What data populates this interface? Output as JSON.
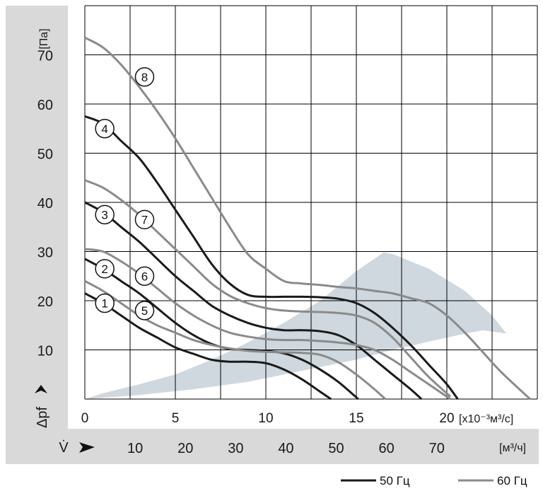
{
  "chart_data": {
    "type": "line",
    "xlabel": "",
    "x_unit": "[x10⁻³м³/с]",
    "ylabel": "Δpf",
    "y_unit": "[Па]",
    "xlim": [
      0,
      25
    ],
    "ylim": [
      0,
      80
    ],
    "x_ticks": [
      "0",
      "5",
      "10",
      "15",
      "20"
    ],
    "y_ticks": [
      "10",
      "20",
      "30",
      "40",
      "50",
      "60",
      "70"
    ],
    "secondary_axis": {
      "symbol": "V̇",
      "unit": "[м³/ч]",
      "ticks": [
        "10",
        "20",
        "30",
        "40",
        "50",
        "60",
        "70"
      ]
    },
    "legend": [
      {
        "name": "50 Гц",
        "color": "#1a1a1a"
      },
      {
        "name": "60 Гц",
        "color": "#8a8a8a"
      }
    ],
    "colors": {
      "hz50": "#1a1a1a",
      "hz60": "#8a8a8a",
      "region": "#cfd8de",
      "grid": "#000000",
      "band": "#d9d9d9"
    },
    "series": [
      {
        "name": "1",
        "freq": "50 Гц",
        "x": [
          0,
          1,
          2,
          3,
          4,
          5,
          6,
          7,
          8,
          9,
          10,
          11,
          12,
          13,
          13.6
        ],
        "y": [
          21.5,
          19.5,
          17,
          14.5,
          12.5,
          10.5,
          9.2,
          8,
          7.6,
          7.6,
          7.3,
          6,
          4,
          1.5,
          0
        ]
      },
      {
        "name": "2",
        "freq": "50 Гц",
        "x": [
          0,
          1,
          2,
          3,
          4,
          5,
          6,
          7,
          8,
          9,
          10,
          11,
          12,
          13,
          14,
          15.1
        ],
        "y": [
          28.5,
          26.5,
          24,
          21.5,
          18.5,
          15.5,
          13,
          11.2,
          10.2,
          10,
          9.8,
          9.3,
          8,
          6,
          3.5,
          0
        ]
      },
      {
        "name": "3",
        "freq": "50 Гц",
        "x": [
          0,
          1,
          2,
          3,
          4,
          5,
          6,
          7,
          8,
          9,
          10,
          11,
          12,
          13,
          14,
          15,
          16,
          17,
          18,
          18.6
        ],
        "y": [
          40,
          38,
          35,
          32,
          28.5,
          25,
          22,
          19,
          17,
          15.5,
          14.5,
          14,
          14,
          13.8,
          13,
          11,
          8,
          5,
          2,
          0
        ]
      },
      {
        "name": "4",
        "freq": "50 Гц",
        "x": [
          0,
          1,
          2,
          3,
          4,
          5,
          6,
          7,
          8,
          9,
          10,
          11,
          12,
          13,
          14,
          15,
          16,
          17,
          18,
          19,
          20,
          20.6
        ],
        "y": [
          57.5,
          56,
          52.5,
          49,
          44,
          38.5,
          33,
          27.5,
          23.5,
          21.2,
          20.8,
          20.8,
          20.8,
          20.7,
          20.4,
          19.5,
          17.5,
          14.5,
          11,
          7,
          3,
          0
        ]
      },
      {
        "name": "5",
        "freq": "60 Гц",
        "x": [
          0,
          1,
          2,
          3,
          4,
          5,
          6,
          7,
          8,
          9,
          10,
          11,
          12,
          13,
          14,
          15,
          16,
          16.6
        ],
        "y": [
          24,
          22,
          19.5,
          17,
          15,
          13.5,
          12,
          11,
          10.3,
          9.8,
          9.6,
          9.5,
          9.4,
          9,
          7.5,
          5,
          2,
          0
        ]
      },
      {
        "name": "6",
        "freq": "60 Гц",
        "x": [
          0,
          1,
          2,
          3,
          4,
          5,
          6,
          7,
          8,
          9,
          10,
          11,
          12,
          13,
          14,
          15,
          16,
          17,
          18,
          19,
          20.2
        ],
        "y": [
          30.5,
          30,
          28,
          25.5,
          22.5,
          19.5,
          17,
          15,
          13.5,
          12.7,
          12.2,
          12,
          12,
          11.8,
          11.5,
          11,
          10,
          8,
          5.5,
          3,
          0
        ]
      },
      {
        "name": "7",
        "freq": "60 Гц",
        "x": [
          0,
          1,
          2,
          3,
          4,
          5,
          6,
          7,
          8,
          9,
          10,
          11,
          12,
          13,
          14,
          15,
          16,
          17,
          18,
          19,
          20.2
        ],
        "y": [
          44.5,
          43,
          40.5,
          37.5,
          34,
          30.5,
          27,
          23.5,
          21,
          19.5,
          18.5,
          18,
          17.8,
          17.7,
          17.5,
          17,
          15.5,
          12.5,
          8.5,
          4.5,
          0.5
        ]
      },
      {
        "name": "8",
        "freq": "60 Гц",
        "x": [
          0,
          1,
          2,
          3,
          4,
          5,
          6,
          7,
          8,
          9,
          10,
          11,
          12,
          13,
          14,
          15,
          16,
          17,
          18,
          19,
          20,
          21,
          22,
          23,
          24.6
        ],
        "y": [
          73.5,
          71.5,
          68,
          63.5,
          58.5,
          53,
          47,
          41,
          35,
          29.5,
          26.5,
          24,
          23.5,
          23.2,
          22.8,
          22.5,
          22,
          21.5,
          20.5,
          19.5,
          17,
          13.5,
          9.5,
          5.5,
          0
        ]
      }
    ],
    "labels": [
      {
        "text": "1",
        "x": 1.1,
        "y": 19.5
      },
      {
        "text": "2",
        "x": 1.1,
        "y": 26.5
      },
      {
        "text": "3",
        "x": 1.1,
        "y": 37.5
      },
      {
        "text": "4",
        "x": 1.1,
        "y": 55.0
      },
      {
        "text": "5",
        "x": 3.3,
        "y": 18.0
      },
      {
        "text": "6",
        "x": 3.3,
        "y": 25.0
      },
      {
        "text": "7",
        "x": 3.3,
        "y": 36.5
      },
      {
        "text": "8",
        "x": 3.3,
        "y": 65.5
      }
    ],
    "region": {
      "x": [
        0,
        3,
        6,
        9,
        11,
        13,
        15,
        16,
        17,
        18,
        19,
        20,
        21,
        22,
        23.3,
        22.5,
        21,
        19,
        17,
        16.5,
        15,
        13,
        11,
        9,
        7,
        5,
        3,
        1,
        0
      ],
      "y": [
        0,
        0.8,
        2,
        3.5,
        5,
        6.5,
        8,
        9,
        10,
        10.8,
        11.7,
        12.5,
        13.3,
        14,
        13.3,
        17,
        22,
        26.5,
        29.5,
        29.8,
        26,
        20,
        15.5,
        11.5,
        8,
        5,
        3,
        1.2,
        0
      ]
    }
  }
}
